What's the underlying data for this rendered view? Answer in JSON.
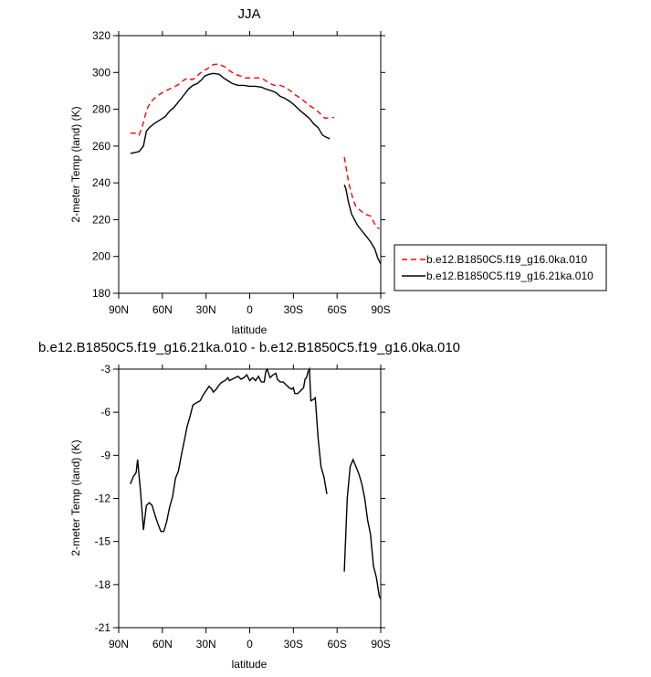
{
  "chart_data": [
    {
      "type": "line",
      "title": "JJA",
      "xlabel": "latitude",
      "ylabel": "2-meter Temp (land) (K)",
      "xlim": [
        90,
        -90
      ],
      "ylim": [
        180,
        320
      ],
      "xtick_values": [
        90,
        60,
        30,
        0,
        -30,
        -60,
        -90
      ],
      "xtick_labels": [
        "90N",
        "60N",
        "30N",
        "0",
        "30S",
        "60S",
        "90S"
      ],
      "yticks": [
        180,
        200,
        220,
        240,
        260,
        280,
        300,
        320
      ],
      "legend_position": "right",
      "series": [
        {
          "name": "b.e12.B1850C5.f19_g16.0ka.010",
          "color": "#ff0000",
          "dash": "dashed",
          "segments": [
            [
              [
                82,
                267
              ],
              [
                78,
                267
              ],
              [
                76,
                266
              ],
              [
                74,
                270
              ],
              [
                72,
                276
              ],
              [
                70,
                281
              ],
              [
                68,
                284
              ],
              [
                64,
                287
              ],
              [
                60,
                289
              ],
              [
                55,
                291
              ],
              [
                52,
                292
              ],
              [
                48,
                294
              ],
              [
                45,
                296
              ],
              [
                42,
                297
              ],
              [
                40,
                296
              ],
              [
                37,
                297
              ],
              [
                35,
                299
              ],
              [
                32,
                301
              ],
              [
                29,
                302
              ],
              [
                26,
                304
              ],
              [
                23,
                304.5
              ],
              [
                20,
                304
              ],
              [
                17,
                303
              ],
              [
                14,
                301
              ],
              [
                10,
                299
              ],
              [
                6,
                298
              ],
              [
                3,
                297
              ],
              [
                0,
                297
              ],
              [
                -4,
                297
              ],
              [
                -8,
                297
              ],
              [
                -10,
                296
              ],
              [
                -14,
                294
              ],
              [
                -17,
                293
              ],
              [
                -21,
                293
              ],
              [
                -24,
                292
              ],
              [
                -28,
                290
              ],
              [
                -31,
                288
              ],
              [
                -35,
                286
              ],
              [
                -38,
                284
              ],
              [
                -41,
                282
              ],
              [
                -45,
                280
              ],
              [
                -48,
                278
              ],
              [
                -50,
                276
              ],
              [
                -52,
                275
              ],
              [
                -55,
                275.5
              ],
              [
                -58,
                275.5
              ]
            ],
            [
              [
                -65,
                254
              ],
              [
                -68,
                240
              ],
              [
                -71,
                231
              ],
              [
                -73,
                227
              ],
              [
                -76,
                225
              ],
              [
                -79,
                223
              ],
              [
                -83,
                222
              ],
              [
                -85,
                219
              ],
              [
                -87,
                216
              ],
              [
                -89,
                215
              ]
            ]
          ]
        },
        {
          "name": "b.e12.B1850C5.f19_g16.21ka.010",
          "color": "#000000",
          "dash": "solid",
          "segments": [
            [
              [
                82,
                256
              ],
              [
                79,
                256.5
              ],
              [
                76,
                257
              ],
              [
                73,
                260
              ],
              [
                71,
                268
              ],
              [
                69,
                270
              ],
              [
                66,
                272
              ],
              [
                62,
                274
              ],
              [
                58,
                276
              ],
              [
                55,
                279
              ],
              [
                52,
                281
              ],
              [
                48,
                285
              ],
              [
                45,
                288
              ],
              [
                42,
                291
              ],
              [
                39,
                293
              ],
              [
                36,
                294
              ],
              [
                33,
                296
              ],
              [
                31,
                298
              ],
              [
                28,
                299
              ],
              [
                25,
                299.5
              ],
              [
                21,
                299
              ],
              [
                18,
                297
              ],
              [
                15,
                295.5
              ],
              [
                12,
                294
              ],
              [
                8,
                293
              ],
              [
                4,
                293
              ],
              [
                0,
                292.5
              ],
              [
                -4,
                292.5
              ],
              [
                -8,
                292
              ],
              [
                -11,
                291
              ],
              [
                -15,
                290
              ],
              [
                -18,
                289
              ],
              [
                -21,
                287
              ],
              [
                -24,
                286
              ],
              [
                -28,
                284
              ],
              [
                -31,
                282
              ],
              [
                -35,
                279
              ],
              [
                -38,
                277
              ],
              [
                -41,
                275
              ],
              [
                -44,
                272
              ],
              [
                -47,
                270
              ],
              [
                -50,
                266
              ],
              [
                -52,
                265
              ],
              [
                -55,
                264
              ]
            ],
            [
              [
                -65,
                239
              ],
              [
                -66,
                237
              ],
              [
                -68,
                229
              ],
              [
                -70,
                223
              ],
              [
                -72,
                220
              ],
              [
                -74,
                217
              ],
              [
                -77,
                214
              ],
              [
                -80,
                211
              ],
              [
                -83,
                208
              ],
              [
                -86,
                204
              ],
              [
                -88,
                199
              ],
              [
                -90,
                196
              ]
            ]
          ]
        }
      ]
    },
    {
      "type": "line",
      "title": "b.e12.B1850C5.f19_g16.21ka.010 - b.e12.B1850C5.f19_g16.0ka.010",
      "xlabel": "latitude",
      "ylabel": "2-meter Temp (land) (K)",
      "xlim": [
        90,
        -90
      ],
      "ylim": [
        -21,
        -3
      ],
      "xtick_values": [
        90,
        60,
        30,
        0,
        -30,
        -60,
        -90
      ],
      "xtick_labels": [
        "90N",
        "60N",
        "30N",
        "0",
        "30S",
        "60S",
        "90S"
      ],
      "yticks": [
        -21,
        -18,
        -15,
        -12,
        -9,
        -6,
        -3
      ],
      "series": [
        {
          "color": "#000000",
          "dash": "solid",
          "segments": [
            [
              [
                82,
                -11
              ],
              [
                80,
                -10.5
              ],
              [
                78,
                -10.2
              ],
              [
                77,
                -9.3
              ],
              [
                75,
                -11.5
              ],
              [
                73,
                -14.2
              ],
              [
                71,
                -12.5
              ],
              [
                69,
                -12.3
              ],
              [
                67,
                -12.5
              ],
              [
                65,
                -13.2
              ],
              [
                63,
                -13.8
              ],
              [
                61,
                -14.3
              ],
              [
                59,
                -14.3
              ],
              [
                57,
                -13.6
              ],
              [
                55,
                -12.6
              ],
              [
                53,
                -11.9
              ],
              [
                51,
                -10.6
              ],
              [
                49,
                -10.1
              ],
              [
                47,
                -9
              ],
              [
                45,
                -8
              ],
              [
                43,
                -7
              ],
              [
                41,
                -6.3
              ],
              [
                39,
                -5.5
              ],
              [
                36,
                -5.3
              ],
              [
                34,
                -5.2
              ],
              [
                32,
                -4.8
              ],
              [
                30,
                -4.5
              ],
              [
                28,
                -4.2
              ],
              [
                26,
                -4.4
              ],
              [
                25,
                -4.6
              ],
              [
                23,
                -4.4
              ],
              [
                21,
                -4.1
              ],
              [
                19,
                -3.9
              ],
              [
                17,
                -3.8
              ],
              [
                15,
                -3.6
              ],
              [
                14,
                -3.8
              ],
              [
                12,
                -3.7
              ],
              [
                10,
                -3.6
              ],
              [
                8,
                -3.5
              ],
              [
                6,
                -3.7
              ],
              [
                4,
                -3.6
              ],
              [
                2,
                -3.4
              ],
              [
                0,
                -3.8
              ],
              [
                -2,
                -3.6
              ],
              [
                -4,
                -3.8
              ],
              [
                -6,
                -3.5
              ],
              [
                -8,
                -3.9
              ],
              [
                -10,
                -3.9
              ],
              [
                -11,
                -3.2
              ],
              [
                -12,
                -3
              ],
              [
                -13,
                -3.3
              ],
              [
                -14,
                -3.6
              ],
              [
                -16,
                -3.4
              ],
              [
                -18,
                -3.3
              ],
              [
                -19,
                -3.7
              ],
              [
                -21,
                -3.9
              ],
              [
                -23,
                -3.9
              ],
              [
                -25,
                -4.1
              ],
              [
                -27,
                -4.3
              ],
              [
                -29,
                -4.4
              ],
              [
                -30,
                -4.3
              ],
              [
                -31,
                -4.7
              ],
              [
                -33,
                -4.7
              ],
              [
                -35,
                -4.5
              ],
              [
                -37,
                -4.3
              ],
              [
                -38,
                -3.7
              ],
              [
                -39,
                -3.6
              ],
              [
                -40,
                -3.2
              ],
              [
                -41,
                -3
              ],
              [
                -42,
                -5.2
              ],
              [
                -44,
                -5.1
              ],
              [
                -45,
                -5
              ],
              [
                -47,
                -7.8
              ],
              [
                -49,
                -9.8
              ],
              [
                -51,
                -10.5
              ],
              [
                -53,
                -11.7
              ]
            ],
            [
              [
                -65,
                -17.1
              ],
              [
                -67,
                -12
              ],
              [
                -69,
                -9.8
              ],
              [
                -71,
                -9.3
              ],
              [
                -73,
                -9.8
              ],
              [
                -75,
                -10.3
              ],
              [
                -77,
                -11
              ],
              [
                -79,
                -12
              ],
              [
                -81,
                -13.5
              ],
              [
                -83,
                -14.5
              ],
              [
                -85,
                -16.7
              ],
              [
                -87,
                -17.5
              ],
              [
                -89,
                -18.8
              ],
              [
                -90,
                -19
              ]
            ]
          ]
        }
      ]
    }
  ]
}
